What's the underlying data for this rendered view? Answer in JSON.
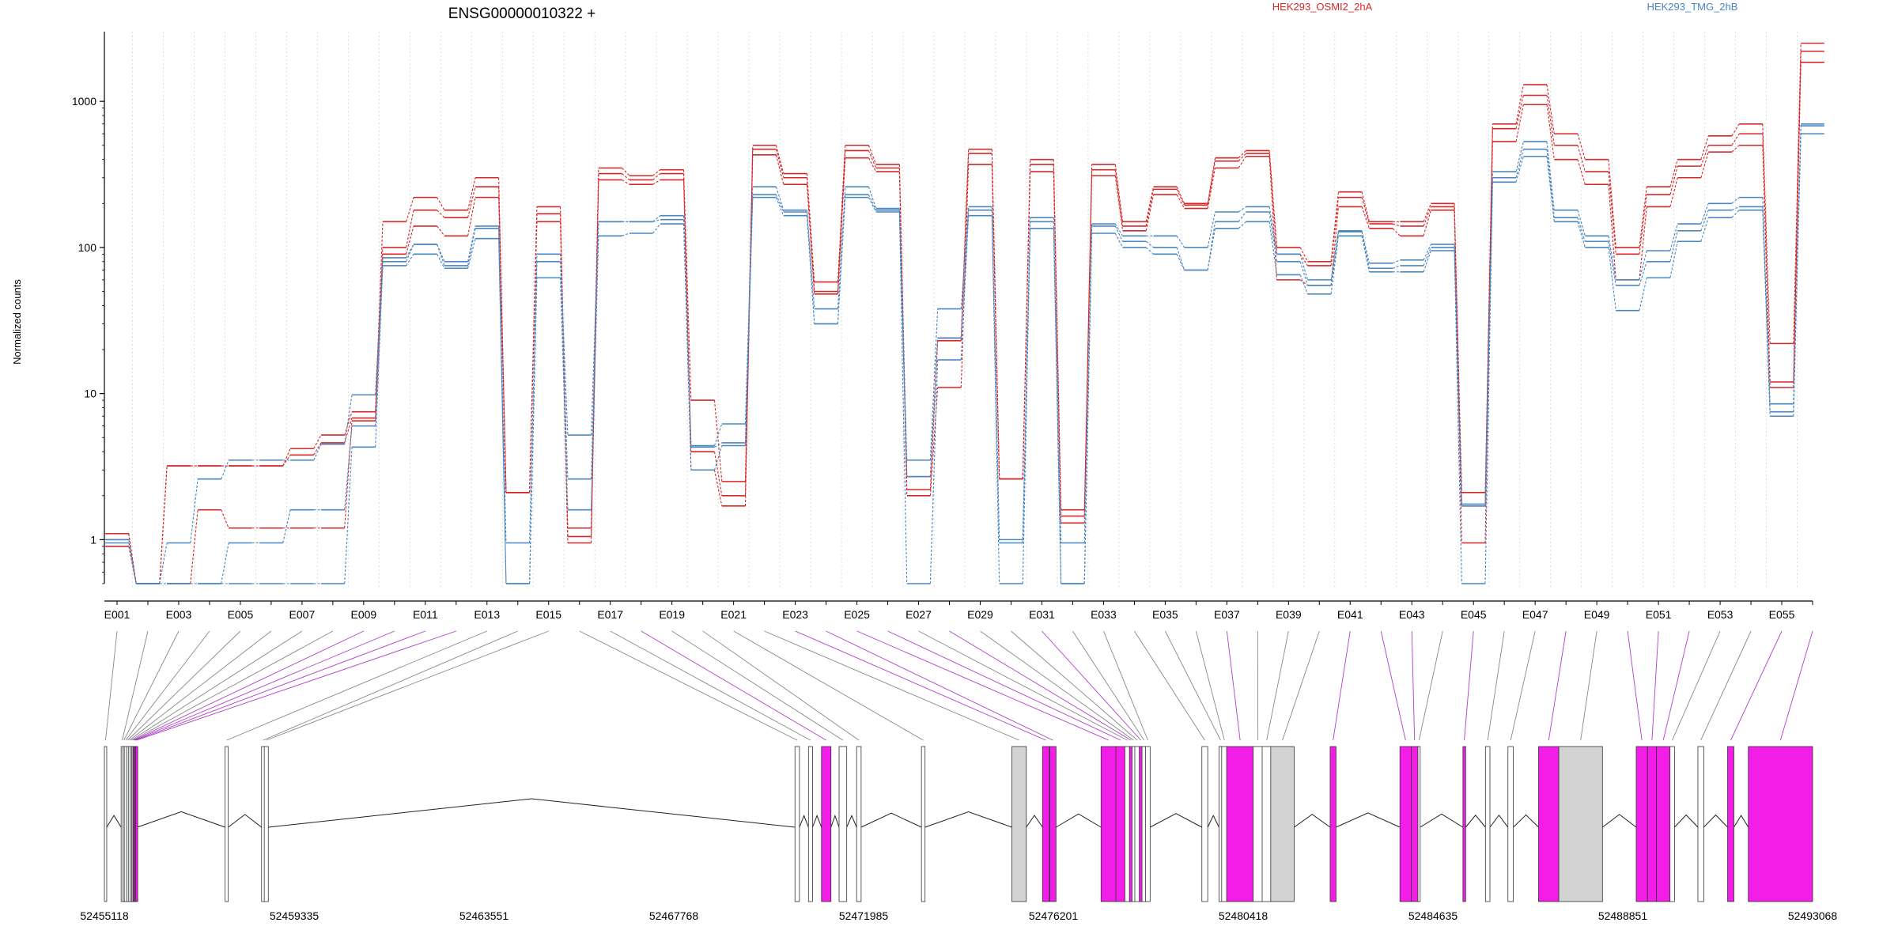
{
  "chart_data": {
    "type": "line",
    "title": "ENSG00000010322 +",
    "ylabel": "Normalized counts",
    "yscale": "log",
    "ylim": [
      0.5,
      3000
    ],
    "y_ticks": [
      "1",
      "10",
      "100",
      "1000"
    ],
    "y_tick_values": [
      1,
      10,
      100,
      1000
    ],
    "grid": "vertical dotted",
    "legend": "top-right",
    "exon_ids": [
      "E001",
      "E002",
      "E003",
      "E004",
      "E005",
      "E006",
      "E007",
      "E008",
      "E009",
      "E010",
      "E011",
      "E012",
      "E013",
      "E014",
      "E015",
      "E016",
      "E017",
      "E018",
      "E019",
      "E020",
      "E021",
      "E022",
      "E023",
      "E024",
      "E025",
      "E026",
      "E027",
      "E028",
      "E029",
      "E030",
      "E031",
      "E032",
      "E033",
      "E034",
      "E035",
      "E036",
      "E037",
      "E038",
      "E039",
      "E040",
      "E041",
      "E042",
      "E043",
      "E044",
      "E045",
      "E046",
      "E047",
      "E048",
      "E049",
      "E050",
      "E051",
      "E052",
      "E053",
      "E054",
      "E055",
      "E056"
    ],
    "x_tick_labels": [
      "E001",
      "E003",
      "E005",
      "E007",
      "E009",
      "E011",
      "E013",
      "E015",
      "E017",
      "E019",
      "E021",
      "E023",
      "E025",
      "E027",
      "E029",
      "E031",
      "E033",
      "E035",
      "E037",
      "E039",
      "E041",
      "E043",
      "E045",
      "E047",
      "E049",
      "E051",
      "E053",
      "E055"
    ],
    "series": [
      {
        "name": "HEK293_OSMI2_2hA",
        "condition": "HEK293_OSMI2_2hA",
        "values": [
          1.1,
          0.5,
          3.2,
          3.2,
          3.2,
          3.2,
          4.2,
          5.2,
          7.5,
          150,
          220,
          180,
          300,
          2.1,
          190,
          1.2,
          350,
          310,
          340,
          9,
          2.5,
          500,
          320,
          58,
          500,
          370,
          2.7,
          24,
          470,
          2.6,
          400,
          1.6,
          370,
          150,
          260,
          200,
          410,
          460,
          100,
          80,
          240,
          150,
          150,
          200,
          2.1,
          700,
          1300,
          600,
          400,
          100,
          260,
          400,
          580,
          700,
          22,
          2500
        ]
      },
      {
        "name": "HEK293_OSMI2_2hA",
        "condition": "HEK293_OSMI2_2hA",
        "values": [
          1.1,
          0.5,
          3.2,
          3.2,
          3.2,
          3.2,
          3.8,
          4.6,
          6.8,
          100,
          180,
          160,
          260,
          2.1,
          170,
          1.05,
          320,
          290,
          320,
          4,
          2.0,
          470,
          300,
          50,
          460,
          350,
          2.2,
          23,
          440,
          2.6,
          370,
          1.45,
          340,
          140,
          250,
          195,
          390,
          440,
          90,
          75,
          220,
          145,
          140,
          190,
          1.7,
          650,
          1100,
          500,
          330,
          90,
          230,
          360,
          500,
          600,
          12,
          2200
        ]
      },
      {
        "name": "HEK293_OSMI2_2hA",
        "condition": "HEK293_OSMI2_2hA",
        "values": [
          0.9,
          0.5,
          0.5,
          1.6,
          1.2,
          1.2,
          1.2,
          1.2,
          6.5,
          90,
          140,
          120,
          220,
          2.1,
          150,
          0.95,
          290,
          270,
          290,
          3,
          1.7,
          430,
          270,
          48,
          410,
          330,
          2.0,
          11,
          370,
          2.6,
          330,
          1.3,
          310,
          130,
          230,
          185,
          350,
          420,
          60,
          55,
          190,
          135,
          120,
          180,
          0.95,
          530,
          950,
          400,
          270,
          60,
          190,
          300,
          450,
          500,
          11,
          1850
        ]
      },
      {
        "name": "HEK293_TMG_2hB",
        "condition": "HEK293_TMG_2hB",
        "values": [
          1.0,
          0.5,
          0.95,
          2.6,
          3.5,
          3.5,
          3.5,
          4.5,
          9.8,
          85,
          105,
          80,
          140,
          0.95,
          90,
          5.2,
          150,
          150,
          165,
          4.4,
          6.2,
          260,
          180,
          38,
          260,
          185,
          3.5,
          38,
          190,
          1.0,
          160,
          0.95,
          145,
          120,
          120,
          100,
          175,
          190,
          90,
          60,
          130,
          78,
          82,
          105,
          1.75,
          330,
          530,
          180,
          120,
          60,
          95,
          145,
          200,
          220,
          8.5,
          700
        ]
      },
      {
        "name": "HEK293_TMG_2hB",
        "condition": "HEK293_TMG_2hB",
        "values": [
          1.0,
          0.5,
          0.5,
          0.5,
          0.95,
          0.95,
          1.6,
          1.6,
          6.0,
          80,
          105,
          75,
          135,
          0.5,
          80,
          2.6,
          150,
          150,
          155,
          4.3,
          4.6,
          230,
          175,
          30,
          230,
          180,
          2.7,
          24,
          180,
          0.95,
          150,
          0.5,
          140,
          110,
          100,
          70,
          150,
          175,
          80,
          55,
          128,
          72,
          75,
          100,
          1.7,
          300,
          470,
          160,
          110,
          55,
          80,
          130,
          180,
          190,
          7.5,
          680
        ]
      },
      {
        "name": "HEK293_TMG_2hB",
        "condition": "HEK293_TMG_2hB",
        "values": [
          0.95,
          0.5,
          0.5,
          0.5,
          0.5,
          0.5,
          0.5,
          0.5,
          4.3,
          75,
          90,
          72,
          115,
          0.5,
          62,
          1.6,
          120,
          125,
          145,
          3.0,
          4.4,
          220,
          165,
          30,
          220,
          175,
          0.5,
          17,
          165,
          0.5,
          135,
          0.5,
          125,
          100,
          90,
          70,
          135,
          150,
          65,
          48,
          120,
          68,
          68,
          95,
          0.5,
          280,
          420,
          150,
          100,
          37,
          62,
          110,
          160,
          180,
          7,
          600
        ]
      }
    ],
    "legend_entries": [
      {
        "label": "HEK293_OSMI2_2hA",
        "color": "#d62728"
      },
      {
        "label": "HEK293_TMG_2hB",
        "color": "#4a86c0"
      }
    ],
    "colors": {
      "condition_a": "#d62728",
      "condition_b": "#4a86c0",
      "exon_significant": "#f31de8",
      "exon_normal": "#ffffff",
      "exon_large": "#d3d3d3",
      "connector_normal": "#888888",
      "connector_significant": "#b040c8"
    },
    "gene_model": {
      "coordinate_ticks": [
        "52455118",
        "52459335",
        "52463551",
        "52467768",
        "52471985",
        "52476201",
        "52480418",
        "52484635",
        "52488851",
        "52493068"
      ],
      "coordinate_tick_values": [
        52455118,
        52459335,
        52463551,
        52467768,
        52471985,
        52476201,
        52480418,
        52484635,
        52488851,
        52493068
      ],
      "genomic_range": [
        52455118,
        52493068
      ],
      "exons": [
        {
          "id": "E001",
          "start": 52455118,
          "end": 52455170,
          "significant": false
        },
        {
          "id": "E002",
          "start": 52455490,
          "end": 52455540,
          "significant": false
        },
        {
          "id": "E003",
          "start": 52455530,
          "end": 52455575,
          "significant": false
        },
        {
          "id": "E004",
          "start": 52455560,
          "end": 52455620,
          "significant": false
        },
        {
          "id": "E005",
          "start": 52455610,
          "end": 52455660,
          "significant": false
        },
        {
          "id": "E006",
          "start": 52455650,
          "end": 52455700,
          "significant": false
        },
        {
          "id": "E007",
          "start": 52455690,
          "end": 52455735,
          "significant": false
        },
        {
          "id": "E008",
          "start": 52455725,
          "end": 52455760,
          "significant": false
        },
        {
          "id": "E009",
          "start": 52455750,
          "end": 52455780,
          "significant": true
        },
        {
          "id": "E010",
          "start": 52455770,
          "end": 52455800,
          "significant": true
        },
        {
          "id": "E011",
          "start": 52455790,
          "end": 52455825,
          "significant": true
        },
        {
          "id": "E012",
          "start": 52455815,
          "end": 52455850,
          "significant": true
        },
        {
          "id": "E013",
          "start": 52457800,
          "end": 52457870,
          "significant": false
        },
        {
          "id": "E014",
          "start": 52458610,
          "end": 52458680,
          "significant": false
        },
        {
          "id": "E015",
          "start": 52458670,
          "end": 52458760,
          "significant": false
        },
        {
          "id": "E016",
          "start": 52470460,
          "end": 52470560,
          "significant": false
        },
        {
          "id": "E017",
          "start": 52470760,
          "end": 52470850,
          "significant": false
        },
        {
          "id": "E018",
          "start": 52471050,
          "end": 52471260,
          "significant": true
        },
        {
          "id": "E019",
          "start": 52471440,
          "end": 52471610,
          "significant": false
        },
        {
          "id": "E020",
          "start": 52471830,
          "end": 52471930,
          "significant": false
        },
        {
          "id": "E021",
          "start": 52473270,
          "end": 52473350,
          "significant": false
        },
        {
          "id": "E022",
          "start": 52475280,
          "end": 52475600,
          "significant": false
        },
        {
          "id": "E023",
          "start": 52475960,
          "end": 52476110,
          "significant": true
        },
        {
          "id": "E024",
          "start": 52476120,
          "end": 52476260,
          "significant": true
        },
        {
          "id": "E025",
          "start": 52477260,
          "end": 52477600,
          "significant": true
        },
        {
          "id": "E026",
          "start": 52477590,
          "end": 52477800,
          "significant": true
        },
        {
          "id": "E027",
          "start": 52477790,
          "end": 52477900,
          "significant": false
        },
        {
          "id": "E028",
          "start": 52477890,
          "end": 52477960,
          "significant": true
        },
        {
          "id": "E029",
          "start": 52477950,
          "end": 52478020,
          "significant": false
        },
        {
          "id": "E030",
          "start": 52478010,
          "end": 52478120,
          "significant": false
        },
        {
          "id": "E031",
          "start": 52478110,
          "end": 52478180,
          "significant": true
        },
        {
          "id": "E032",
          "start": 52478170,
          "end": 52478260,
          "significant": false
        },
        {
          "id": "E033",
          "start": 52478250,
          "end": 52478350,
          "significant": false
        },
        {
          "id": "E034",
          "start": 52479500,
          "end": 52479630,
          "significant": false
        },
        {
          "id": "E035",
          "start": 52479880,
          "end": 52479950,
          "significant": false
        },
        {
          "id": "E036",
          "start": 52479940,
          "end": 52480060,
          "significant": false
        },
        {
          "id": "E037",
          "start": 52480050,
          "end": 52480650,
          "significant": true
        },
        {
          "id": "E038",
          "start": 52480640,
          "end": 52480850,
          "significant": false
        },
        {
          "id": "E039",
          "start": 52480840,
          "end": 52481040,
          "significant": false
        },
        {
          "id": "E040",
          "start": 52481030,
          "end": 52481550,
          "significant": false
        },
        {
          "id": "E041",
          "start": 52482350,
          "end": 52482480,
          "significant": true
        },
        {
          "id": "E042",
          "start": 52483900,
          "end": 52484150,
          "significant": true
        },
        {
          "id": "E043",
          "start": 52484150,
          "end": 52484300,
          "significant": true
        },
        {
          "id": "E044",
          "start": 52484300,
          "end": 52484350,
          "significant": false
        },
        {
          "id": "E045",
          "start": 52485300,
          "end": 52485360,
          "significant": true
        },
        {
          "id": "E046",
          "start": 52485800,
          "end": 52485900,
          "significant": false
        },
        {
          "id": "E047",
          "start": 52486300,
          "end": 52486420,
          "significant": false
        },
        {
          "id": "E048",
          "start": 52486980,
          "end": 52487430,
          "significant": true
        },
        {
          "id": "E049",
          "start": 52487430,
          "end": 52488400,
          "significant": false
        },
        {
          "id": "E050",
          "start": 52489150,
          "end": 52489400,
          "significant": true
        },
        {
          "id": "E051",
          "start": 52489400,
          "end": 52489600,
          "significant": true
        },
        {
          "id": "E052",
          "start": 52489600,
          "end": 52489900,
          "significant": true
        },
        {
          "id": "E053",
          "start": 52489900,
          "end": 52490000,
          "significant": false
        },
        {
          "id": "E054",
          "start": 52490520,
          "end": 52490650,
          "significant": false
        },
        {
          "id": "E055",
          "start": 52491180,
          "end": 52491320,
          "significant": true
        },
        {
          "id": "E056",
          "start": 52491640,
          "end": 52493068,
          "significant": true
        }
      ]
    }
  }
}
